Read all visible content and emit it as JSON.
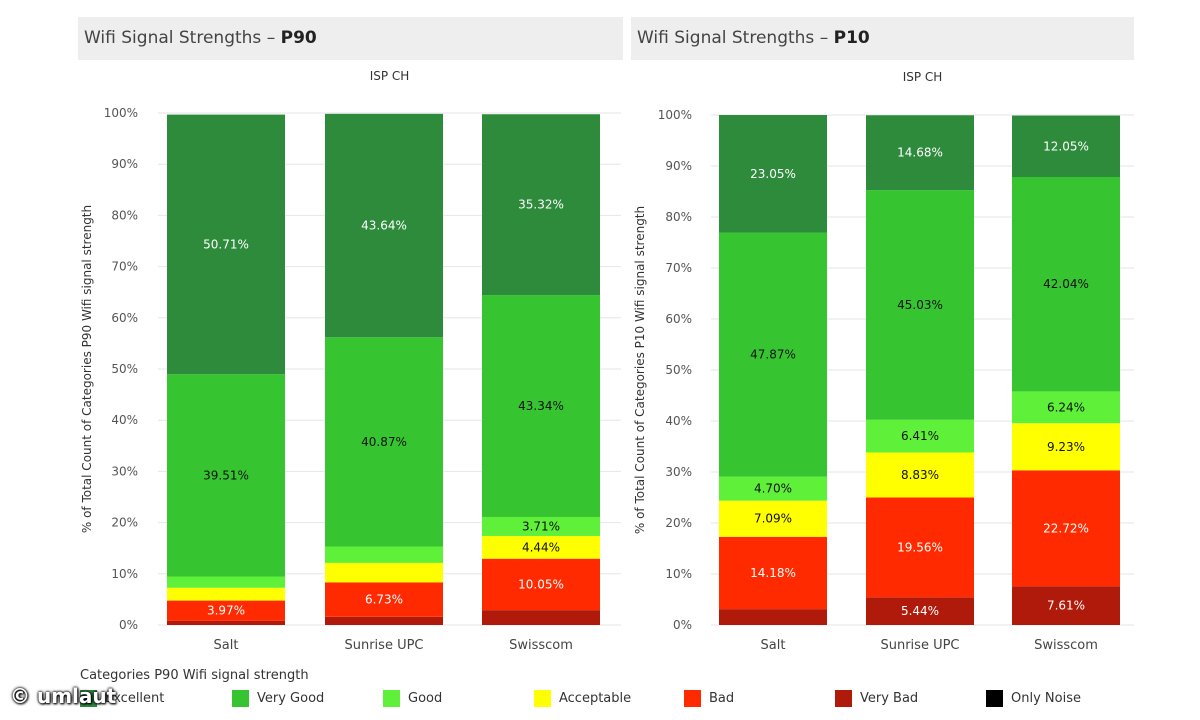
{
  "chart_data": [
    {
      "type": "bar",
      "stacked": true,
      "title_prefix": "Wifi Signal Strengths – ",
      "title_bold": "P90",
      "group_label": "ISP CH",
      "ylabel": "% of Total Count of Categories P90  Wifi signal strength",
      "ylim": [
        0,
        100
      ],
      "yticks": [
        "0%",
        "10%",
        "20%",
        "30%",
        "40%",
        "50%",
        "60%",
        "70%",
        "80%",
        "90%",
        "100%"
      ],
      "categories": [
        "Salt",
        "Sunrise UPC",
        "Swisscom"
      ],
      "series": [
        {
          "name": "Very Bad",
          "values": [
            0.8,
            1.6,
            2.9
          ],
          "labels": [
            "",
            "",
            ""
          ]
        },
        {
          "name": "Bad",
          "values": [
            3.97,
            6.73,
            10.05
          ],
          "labels": [
            "3.97%",
            "6.73%",
            "10.05%"
          ]
        },
        {
          "name": "Acceptable",
          "values": [
            2.5,
            3.8,
            4.44
          ],
          "labels": [
            "",
            "",
            "4.44%"
          ]
        },
        {
          "name": "Good",
          "values": [
            2.2,
            3.2,
            3.71
          ],
          "labels": [
            "",
            "",
            "3.71%"
          ]
        },
        {
          "name": "Very Good",
          "values": [
            39.51,
            40.87,
            43.34
          ],
          "labels": [
            "39.51%",
            "40.87%",
            "43.34%"
          ]
        },
        {
          "name": "Excellent",
          "values": [
            50.71,
            43.64,
            35.32
          ],
          "labels": [
            "50.71%",
            "43.64%",
            "35.32%"
          ]
        }
      ]
    },
    {
      "type": "bar",
      "stacked": true,
      "title_prefix": "Wifi Signal Strengths – ",
      "title_bold": "P10",
      "group_label": "ISP CH",
      "ylabel": "% of Total Count of Categories P10  Wifi signal strength",
      "ylim": [
        0,
        100
      ],
      "yticks": [
        "0%",
        "10%",
        "20%",
        "30%",
        "40%",
        "50%",
        "60%",
        "70%",
        "80%",
        "90%",
        "100%"
      ],
      "categories": [
        "Salt",
        "Sunrise UPC",
        "Swisscom"
      ],
      "series": [
        {
          "name": "Very Bad",
          "values": [
            3.11,
            5.44,
            7.61
          ],
          "labels": [
            "",
            "5.44%",
            "7.61%"
          ]
        },
        {
          "name": "Bad",
          "values": [
            14.18,
            19.56,
            22.72
          ],
          "labels": [
            "14.18%",
            "19.56%",
            "22.72%"
          ]
        },
        {
          "name": "Acceptable",
          "values": [
            7.09,
            8.83,
            9.23
          ],
          "labels": [
            "7.09%",
            "8.83%",
            "9.23%"
          ]
        },
        {
          "name": "Good",
          "values": [
            4.7,
            6.41,
            6.24
          ],
          "labels": [
            "4.70%",
            "6.41%",
            "6.24%"
          ]
        },
        {
          "name": "Very Good",
          "values": [
            47.87,
            45.03,
            42.04
          ],
          "labels": [
            "47.87%",
            "45.03%",
            "42.04%"
          ]
        },
        {
          "name": "Excellent",
          "values": [
            23.05,
            14.68,
            12.05
          ],
          "labels": [
            "23.05%",
            "14.68%",
            "12.05%"
          ]
        }
      ]
    }
  ],
  "colors": {
    "Excellent": "#2e8b3c",
    "Very Good": "#36c530",
    "Good": "#5ff03a",
    "Acceptable": "#ffff00",
    "Bad": "#ff2a00",
    "Very Bad": "#b01a0a",
    "Only Noise": "#000000"
  },
  "label_colors": {
    "Excellent": "#ffffff",
    "Very Good": "#111111",
    "Good": "#111111",
    "Acceptable": "#111111",
    "Bad": "#ffffff",
    "Very Bad": "#ffffff",
    "Only Noise": "#ffffff"
  },
  "legend": {
    "title": "Categories P90  Wifi signal strength",
    "items": [
      "Excellent",
      "Very Good",
      "Good",
      "Acceptable",
      "Bad",
      "Very Bad",
      "Only Noise"
    ]
  },
  "watermark": "© umlaut"
}
